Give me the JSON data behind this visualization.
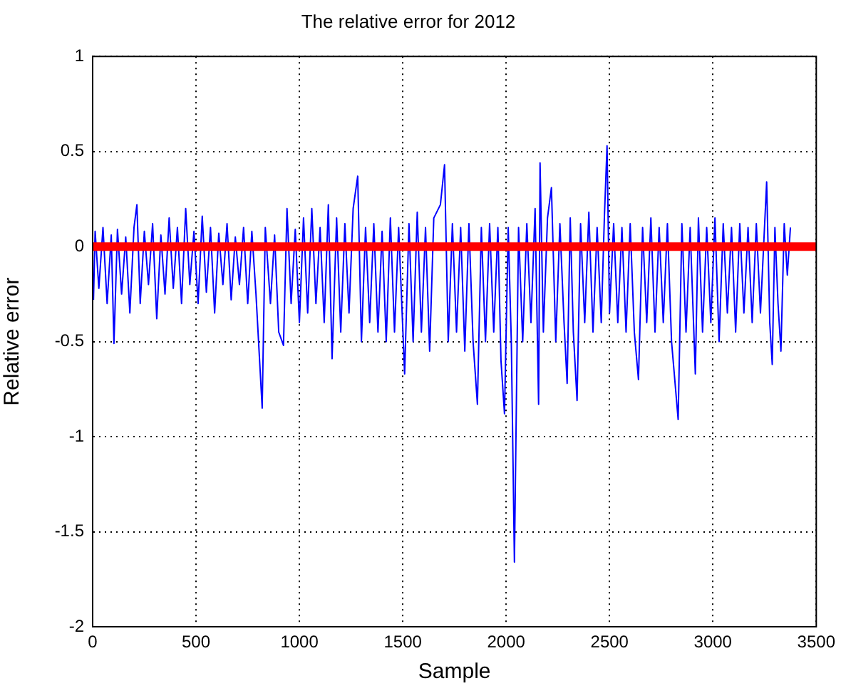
{
  "chart_data": {
    "type": "line",
    "title": "The relative error for 2012",
    "xlabel": "Sample",
    "ylabel": "Relative error",
    "xlim": [
      0,
      3500
    ],
    "xticks": [
      0,
      500,
      1000,
      1500,
      2000,
      2500,
      3000,
      3500
    ],
    "ylim": [
      -2,
      1
    ],
    "yticks": [
      -2,
      -1.5,
      -1,
      -0.5,
      0,
      0.5,
      1
    ],
    "grid": true,
    "legend": false,
    "marker": "none",
    "line_style": "solid",
    "ref_lines": [
      {
        "axis": "y",
        "value": 0,
        "color": "#ff0000"
      }
    ],
    "series": [
      {
        "color": "#0000ff",
        "x": [
          4,
          12,
          30,
          50,
          70,
          90,
          103,
          120,
          140,
          160,
          180,
          200,
          214,
          230,
          250,
          270,
          290,
          310,
          330,
          350,
          370,
          390,
          410,
          430,
          450,
          470,
          490,
          510,
          530,
          550,
          570,
          590,
          610,
          630,
          650,
          670,
          690,
          710,
          730,
          750,
          770,
          790,
          820,
          835,
          860,
          880,
          900,
          923,
          940,
          960,
          980,
          1000,
          1020,
          1040,
          1060,
          1080,
          1100,
          1120,
          1140,
          1158,
          1180,
          1200,
          1220,
          1240,
          1260,
          1282,
          1300,
          1320,
          1340,
          1360,
          1380,
          1400,
          1420,
          1440,
          1460,
          1480,
          1509,
          1530,
          1550,
          1570,
          1590,
          1610,
          1630,
          1650,
          1682,
          1702,
          1720,
          1740,
          1760,
          1780,
          1800,
          1820,
          1840,
          1861,
          1880,
          1900,
          1920,
          1940,
          1960,
          1975,
          1992,
          2010,
          2025,
          2040,
          2060,
          2080,
          2100,
          2120,
          2140,
          2157,
          2164,
          2180,
          2200,
          2219,
          2240,
          2260,
          2280,
          2295,
          2310,
          2325,
          2343,
          2360,
          2380,
          2400,
          2420,
          2440,
          2460,
          2475,
          2488,
          2500,
          2520,
          2540,
          2560,
          2580,
          2600,
          2620,
          2640,
          2660,
          2680,
          2700,
          2720,
          2740,
          2760,
          2780,
          2800,
          2832,
          2850,
          2870,
          2890,
          2915,
          2930,
          2950,
          2970,
          2990,
          3010,
          3030,
          3050,
          3070,
          3090,
          3110,
          3130,
          3150,
          3170,
          3190,
          3210,
          3230,
          3260,
          3275,
          3287,
          3300,
          3315,
          3329,
          3345,
          3360,
          3375
        ],
        "values": [
          -0.28,
          0.08,
          -0.22,
          0.1,
          -0.3,
          0.06,
          -0.51,
          0.09,
          -0.25,
          0.05,
          -0.35,
          0.1,
          0.22,
          -0.3,
          0.08,
          -0.2,
          0.12,
          -0.38,
          0.06,
          -0.25,
          0.15,
          -0.22,
          0.1,
          -0.3,
          0.2,
          -0.2,
          0.08,
          -0.3,
          0.16,
          -0.24,
          0.1,
          -0.35,
          0.07,
          -0.2,
          0.12,
          -0.28,
          0.05,
          -0.2,
          0.1,
          -0.3,
          0.08,
          -0.25,
          -0.85,
          0.1,
          -0.3,
          0.06,
          -0.45,
          -0.52,
          0.2,
          -0.3,
          0.09,
          -0.4,
          0.15,
          -0.35,
          0.2,
          -0.3,
          0.1,
          -0.4,
          0.22,
          -0.59,
          0.15,
          -0.45,
          0.12,
          -0.35,
          0.2,
          0.37,
          -0.5,
          0.1,
          -0.4,
          0.12,
          -0.45,
          0.08,
          -0.5,
          0.15,
          -0.45,
          0.1,
          -0.67,
          0.12,
          -0.5,
          0.18,
          -0.45,
          0.1,
          -0.55,
          0.15,
          0.22,
          0.43,
          -0.5,
          0.12,
          -0.45,
          0.1,
          -0.55,
          0.12,
          -0.5,
          -0.83,
          0.1,
          -0.5,
          0.12,
          -0.45,
          0.1,
          -0.6,
          -0.88,
          0.1,
          -0.5,
          -1.66,
          0.1,
          -0.5,
          0.12,
          -0.4,
          0.2,
          -0.83,
          0.44,
          -0.45,
          0.15,
          0.31,
          -0.5,
          0.12,
          -0.4,
          -0.72,
          0.15,
          -0.45,
          -0.81,
          0.12,
          -0.4,
          0.18,
          -0.45,
          0.1,
          -0.4,
          0.15,
          0.53,
          -0.35,
          0.12,
          -0.4,
          0.1,
          -0.45,
          0.12,
          -0.45,
          -0.7,
          0.1,
          -0.4,
          0.15,
          -0.45,
          0.1,
          -0.4,
          0.12,
          -0.5,
          -0.91,
          0.12,
          -0.45,
          0.1,
          -0.67,
          0.15,
          -0.45,
          0.1,
          -0.4,
          0.15,
          -0.5,
          0.12,
          -0.35,
          0.1,
          -0.45,
          0.12,
          -0.35,
          0.1,
          -0.4,
          0.12,
          -0.35,
          0.34,
          -0.4,
          -0.62,
          0.1,
          -0.3,
          -0.55,
          0.12,
          -0.15,
          0.1
        ]
      }
    ]
  }
}
